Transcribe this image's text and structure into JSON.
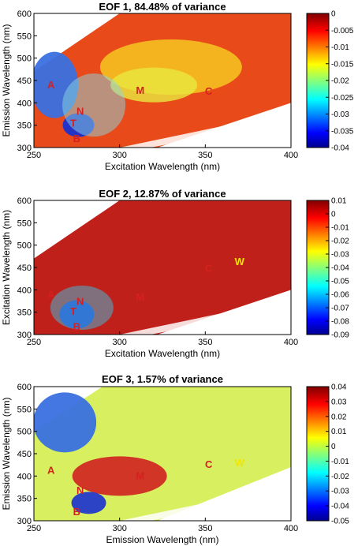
{
  "chart_data": [
    {
      "type": "heatmap",
      "title": "EOF 1, 84.48% of variance",
      "xlabel": "Excitation Wavelength (nm)",
      "ylabel": "Emission Wavelength (nm)",
      "xlim": [
        250,
        400
      ],
      "ylim": [
        300,
        600
      ],
      "x_ticks": [
        "250",
        "300",
        "350",
        "400"
      ],
      "y_ticks": [
        "300",
        "350",
        "400",
        "450",
        "500",
        "550",
        "600"
      ],
      "colorbar": {
        "min": -0.04,
        "max": 0,
        "ticks": [
          "0",
          "-0.005",
          "-0.01",
          "-0.015",
          "-0.02",
          "-0.025",
          "-0.03",
          "-0.035",
          "-0.04"
        ]
      },
      "annotations": [
        {
          "text": "A",
          "x": 260,
          "y": 432,
          "color": "#d62020"
        },
        {
          "text": "N",
          "x": 277,
          "y": 373,
          "color": "#d62020"
        },
        {
          "text": "T",
          "x": 273,
          "y": 347,
          "color": "#d62020"
        },
        {
          "text": "B",
          "x": 275,
          "y": 312,
          "color": "#d62020"
        },
        {
          "text": "M",
          "x": 312,
          "y": 420,
          "color": "#d62020"
        },
        {
          "text": "C",
          "x": 352,
          "y": 418,
          "color": "#d62020"
        }
      ]
    },
    {
      "type": "heatmap",
      "title": "EOF 2, 12.87% of variance",
      "xlabel": "Excitation Wavelength (nm)",
      "ylabel": "Excitation Wavelength (nm)",
      "xlim": [
        250,
        400
      ],
      "ylim": [
        300,
        600
      ],
      "x_ticks": [
        "250",
        "300",
        "350",
        "400"
      ],
      "y_ticks": [
        "300",
        "350",
        "400",
        "450",
        "500",
        "550",
        "600"
      ],
      "colorbar": {
        "min": -0.09,
        "max": 0.01,
        "ticks": [
          "0.01",
          "0",
          "-0.01",
          "-0.02",
          "-0.03",
          "-0.04",
          "-0.05",
          "-0.06",
          "-0.07",
          "-0.08",
          "-0.09"
        ]
      },
      "annotations": [
        {
          "text": "A",
          "x": 260,
          "y": 382,
          "color": "#d62020"
        },
        {
          "text": "N",
          "x": 277,
          "y": 366,
          "color": "#d62020"
        },
        {
          "text": "T",
          "x": 273,
          "y": 344,
          "color": "#d62020"
        },
        {
          "text": "B",
          "x": 275,
          "y": 310,
          "color": "#d62020"
        },
        {
          "text": "M",
          "x": 312,
          "y": 376,
          "color": "#d62020"
        },
        {
          "text": "C",
          "x": 352,
          "y": 440,
          "color": "#d62020"
        },
        {
          "text": "W",
          "x": 370,
          "y": 455,
          "color": "#f2e600"
        }
      ]
    },
    {
      "type": "heatmap",
      "title": "EOF 3, 1.57% of variance",
      "xlabel": "Emission Wavelength (nm)",
      "ylabel": "Emission Wavelength (nm)",
      "xlim": [
        250,
        400
      ],
      "ylim": [
        300,
        600
      ],
      "x_ticks": [
        "250",
        "300",
        "350",
        "400"
      ],
      "y_ticks": [
        "300",
        "350",
        "400",
        "450",
        "500",
        "550",
        "600"
      ],
      "colorbar": {
        "min": -0.05,
        "max": 0.04,
        "ticks": [
          "0.04",
          "0.03",
          "0.02",
          "0.01",
          "0",
          "-0.01",
          "-0.02",
          "-0.03",
          "-0.04",
          "-0.05"
        ]
      },
      "annotations": [
        {
          "text": "A",
          "x": 260,
          "y": 405,
          "color": "#d62020"
        },
        {
          "text": "N",
          "x": 277,
          "y": 360,
          "color": "#d62020"
        },
        {
          "text": "B",
          "x": 275,
          "y": 312,
          "color": "#d62020"
        },
        {
          "text": "M",
          "x": 312,
          "y": 393,
          "color": "#d62020"
        },
        {
          "text": "C",
          "x": 352,
          "y": 418,
          "color": "#d62020"
        },
        {
          "text": "W",
          "x": 370,
          "y": 422,
          "color": "#f2e600"
        }
      ]
    }
  ]
}
